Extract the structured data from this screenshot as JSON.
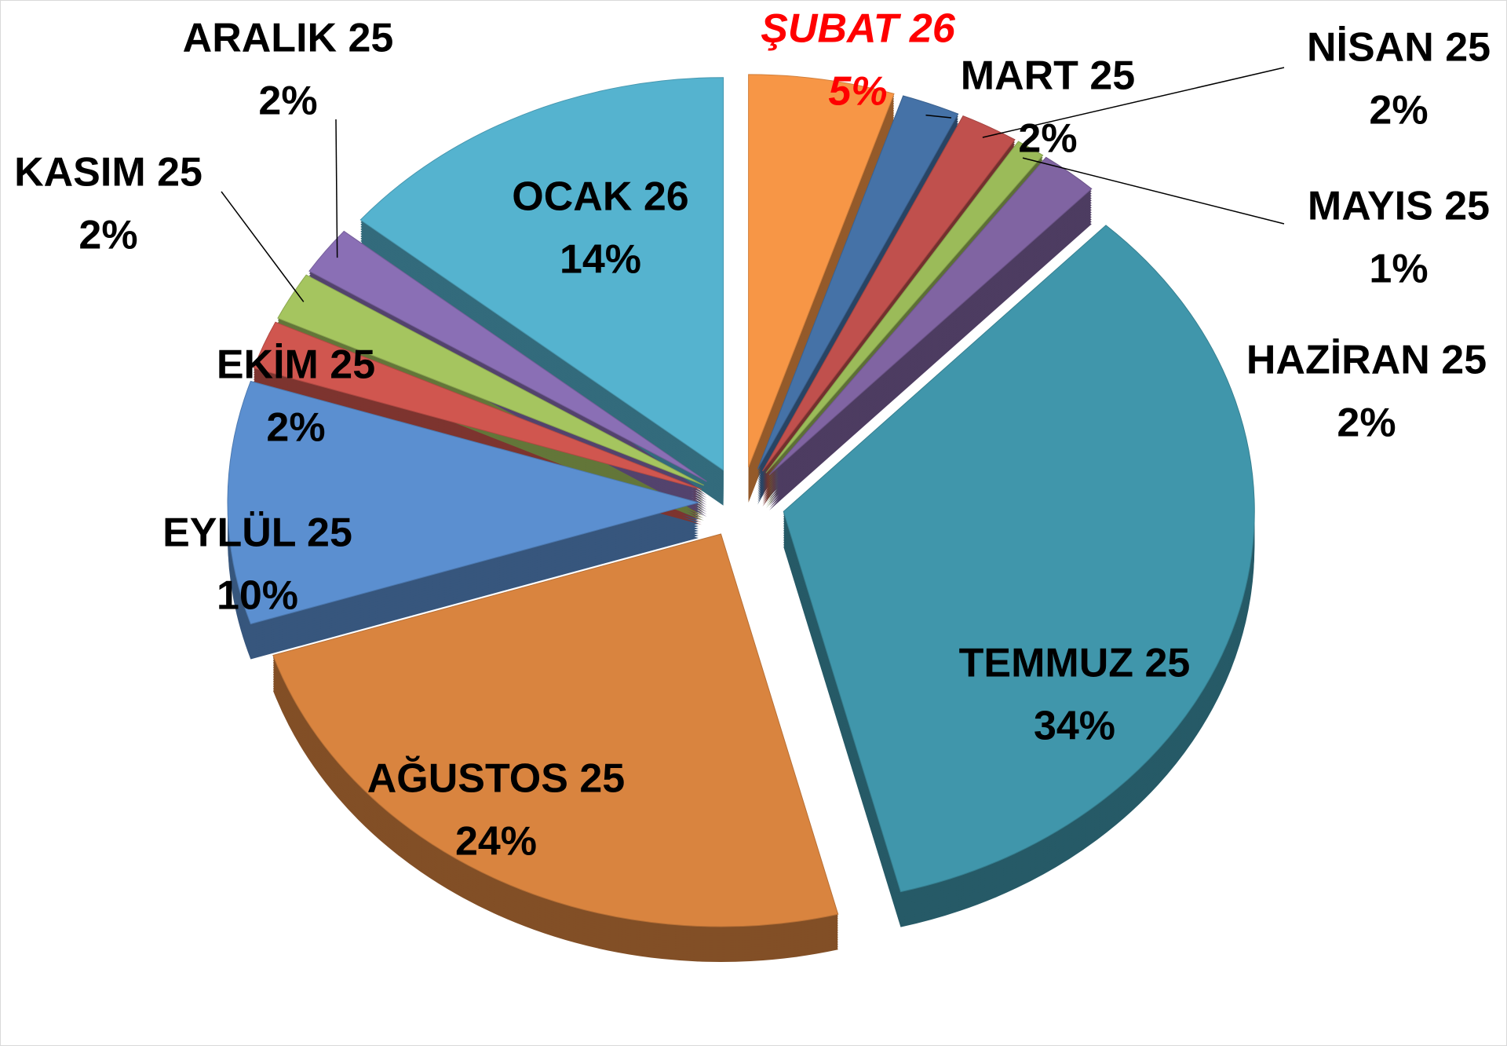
{
  "chart_data": {
    "type": "pie",
    "categories": [
      "ŞUBAT 26",
      "MART 25",
      "NİSAN 25",
      "MAYIS 25",
      "HAZİRAN 25",
      "TEMMUZ 25",
      "AĞUSTOS 25",
      "EYLÜL 25",
      "EKİM 25",
      "KASIM 25",
      "ARALIK 25",
      "OCAK 26"
    ],
    "values": [
      5,
      2,
      2,
      1,
      2,
      34,
      24,
      10,
      2,
      2,
      2,
      14
    ],
    "value_labels": [
      "5%",
      "2%",
      "2%",
      "1%",
      "2%",
      "34%",
      "24%",
      "10%",
      "2%",
      "2%",
      "2%",
      "14%"
    ],
    "colors": [
      "#f79646",
      "#4572a7",
      "#c0504d",
      "#9bbb59",
      "#8064a2",
      "#4096ab",
      "#d9843f",
      "#5b8fd0",
      "#d0564f",
      "#a5c55f",
      "#8a6fb5",
      "#55b3cf"
    ],
    "label_colors": [
      "#ff0000",
      "#000000",
      "#000000",
      "#000000",
      "#000000",
      "#000000",
      "#000000",
      "#000000",
      "#000000",
      "#000000",
      "#000000",
      "#000000"
    ]
  }
}
